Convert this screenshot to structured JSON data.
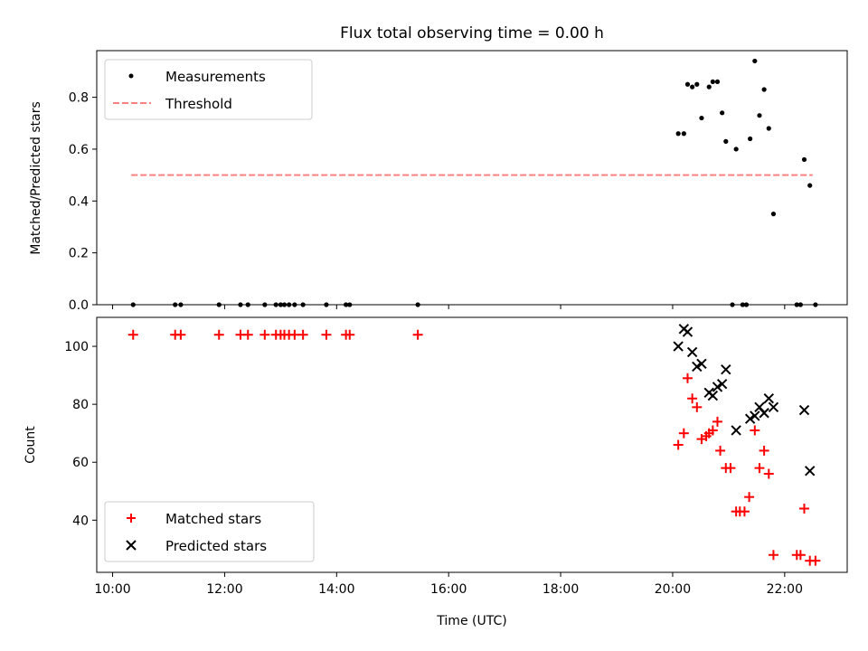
{
  "chart_data": [
    {
      "type": "scatter",
      "title": "Flux total observing time = 0.00 h",
      "xlabel": "",
      "ylabel": "Matched/Predicted stars",
      "xlim": [
        "09:43",
        "23:07"
      ],
      "ylim": [
        0,
        0.98
      ],
      "yticks": [
        0.0,
        0.2,
        0.4,
        0.6,
        0.8
      ],
      "ytick_labels": [
        "0.0",
        "0.2",
        "0.4",
        "0.6",
        "0.8"
      ],
      "xticks": [
        "10:00",
        "12:00",
        "14:00",
        "16:00",
        "18:00",
        "20:00",
        "22:00"
      ],
      "legend_position": "top-left",
      "grid": false,
      "colors": {
        "measurements": "#000000",
        "threshold": "#ff8080"
      },
      "series": [
        {
          "name": "Measurements",
          "marker": "dot",
          "points": [
            [
              "10:22",
              0
            ],
            [
              "11:07",
              0
            ],
            [
              "11:13",
              0
            ],
            [
              "11:54",
              0
            ],
            [
              "12:17",
              0
            ],
            [
              "12:25",
              0
            ],
            [
              "12:43",
              0
            ],
            [
              "12:55",
              0
            ],
            [
              "13:00",
              0
            ],
            [
              "13:04",
              0
            ],
            [
              "13:09",
              0
            ],
            [
              "13:15",
              0
            ],
            [
              "13:24",
              0
            ],
            [
              "13:49",
              0
            ],
            [
              "14:10",
              0
            ],
            [
              "14:14",
              0
            ],
            [
              "15:27",
              0
            ],
            [
              "20:06",
              0.66
            ],
            [
              "20:12",
              0.66
            ],
            [
              "20:16",
              0.85
            ],
            [
              "20:21",
              0.84
            ],
            [
              "20:26",
              0.85
            ],
            [
              "20:31",
              0.72
            ],
            [
              "20:39",
              0.84
            ],
            [
              "20:43",
              0.86
            ],
            [
              "20:48",
              0.86
            ],
            [
              "20:53",
              0.74
            ],
            [
              "20:57",
              0.63
            ],
            [
              "21:04",
              0
            ],
            [
              "21:08",
              0.6
            ],
            [
              "21:15",
              0
            ],
            [
              "21:19",
              0
            ],
            [
              "21:23",
              0.64
            ],
            [
              "21:28",
              0.94
            ],
            [
              "21:33",
              0.73
            ],
            [
              "21:38",
              0.83
            ],
            [
              "21:43",
              0.68
            ],
            [
              "21:48",
              0.35
            ],
            [
              "22:13",
              0
            ],
            [
              "22:17",
              0
            ],
            [
              "22:21",
              0.56
            ],
            [
              "22:27",
              0.46
            ],
            [
              "22:33",
              0
            ]
          ]
        },
        {
          "name": "Threshold",
          "style": "dashed",
          "points": [
            [
              "10:20",
              0.5
            ],
            [
              "22:30",
              0.5
            ]
          ]
        }
      ]
    },
    {
      "type": "scatter",
      "title": "",
      "xlabel": "Time (UTC)",
      "ylabel": "Count",
      "xlim": [
        "09:43",
        "23:07"
      ],
      "ylim": [
        22,
        110
      ],
      "yticks": [
        40,
        60,
        80,
        100
      ],
      "ytick_labels": [
        "40",
        "60",
        "80",
        "100"
      ],
      "xticks": [
        "10:00",
        "12:00",
        "14:00",
        "16:00",
        "18:00",
        "20:00",
        "22:00"
      ],
      "legend_position": "bottom-left",
      "grid": false,
      "colors": {
        "matched": "#ff0000",
        "predicted": "#000000"
      },
      "series": [
        {
          "name": "Matched stars",
          "marker": "plus",
          "points": [
            [
              "10:22",
              104
            ],
            [
              "11:07",
              104
            ],
            [
              "11:13",
              104
            ],
            [
              "11:54",
              104
            ],
            [
              "12:17",
              104
            ],
            [
              "12:25",
              104
            ],
            [
              "12:43",
              104
            ],
            [
              "12:55",
              104
            ],
            [
              "13:00",
              104
            ],
            [
              "13:04",
              104
            ],
            [
              "13:09",
              104
            ],
            [
              "13:15",
              104
            ],
            [
              "13:24",
              104
            ],
            [
              "13:49",
              104
            ],
            [
              "14:10",
              104
            ],
            [
              "14:14",
              104
            ],
            [
              "15:27",
              104
            ],
            [
              "20:06",
              66
            ],
            [
              "20:12",
              70
            ],
            [
              "20:16",
              89
            ],
            [
              "20:21",
              82
            ],
            [
              "20:26",
              79
            ],
            [
              "20:31",
              68
            ],
            [
              "20:36",
              69
            ],
            [
              "20:39",
              70
            ],
            [
              "20:43",
              71
            ],
            [
              "20:48",
              74
            ],
            [
              "20:51",
              64
            ],
            [
              "20:57",
              58
            ],
            [
              "21:02",
              58
            ],
            [
              "21:08",
              43
            ],
            [
              "21:12",
              43
            ],
            [
              "21:17",
              43
            ],
            [
              "21:22",
              48
            ],
            [
              "21:28",
              71
            ],
            [
              "21:33",
              58
            ],
            [
              "21:38",
              64
            ],
            [
              "21:43",
              56
            ],
            [
              "21:48",
              28
            ],
            [
              "22:13",
              28
            ],
            [
              "22:17",
              28
            ],
            [
              "22:21",
              44
            ],
            [
              "22:27",
              26
            ],
            [
              "22:33",
              26
            ]
          ]
        },
        {
          "name": "Predicted stars",
          "marker": "x",
          "points": [
            [
              "20:06",
              100
            ],
            [
              "20:12",
              106
            ],
            [
              "20:16",
              105
            ],
            [
              "20:21",
              98
            ],
            [
              "20:26",
              93
            ],
            [
              "20:31",
              94
            ],
            [
              "20:39",
              84
            ],
            [
              "20:43",
              83
            ],
            [
              "20:48",
              86
            ],
            [
              "20:53",
              87
            ],
            [
              "20:57",
              92
            ],
            [
              "21:08",
              71
            ],
            [
              "21:23",
              75
            ],
            [
              "21:28",
              76
            ],
            [
              "21:33",
              79
            ],
            [
              "21:38",
              77
            ],
            [
              "21:43",
              82
            ],
            [
              "21:48",
              79
            ],
            [
              "22:21",
              78
            ],
            [
              "22:27",
              57
            ]
          ]
        }
      ]
    }
  ]
}
